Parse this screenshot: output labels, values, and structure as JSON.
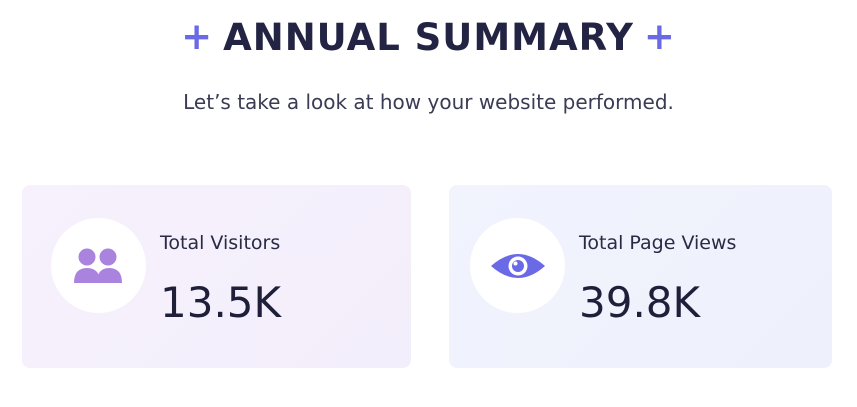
{
  "header": {
    "title": "ANNUAL SUMMARY",
    "decoration_left": "+",
    "decoration_right": "+",
    "subtitle": "Let’s take a look at how your website performed."
  },
  "cards": [
    {
      "id": "visitors",
      "label": "Total Visitors",
      "value": "13.5K",
      "icon": "users-icon",
      "background": "#f3eefb",
      "icon_color": "#a983dd"
    },
    {
      "id": "views",
      "label": "Total Page Views",
      "value": "39.8K",
      "icon": "eye-icon",
      "background": "#eef1fc",
      "icon_color": "#6a6ae6"
    }
  ],
  "colors": {
    "accent": "#6a6ae6",
    "text": "#232343"
  }
}
